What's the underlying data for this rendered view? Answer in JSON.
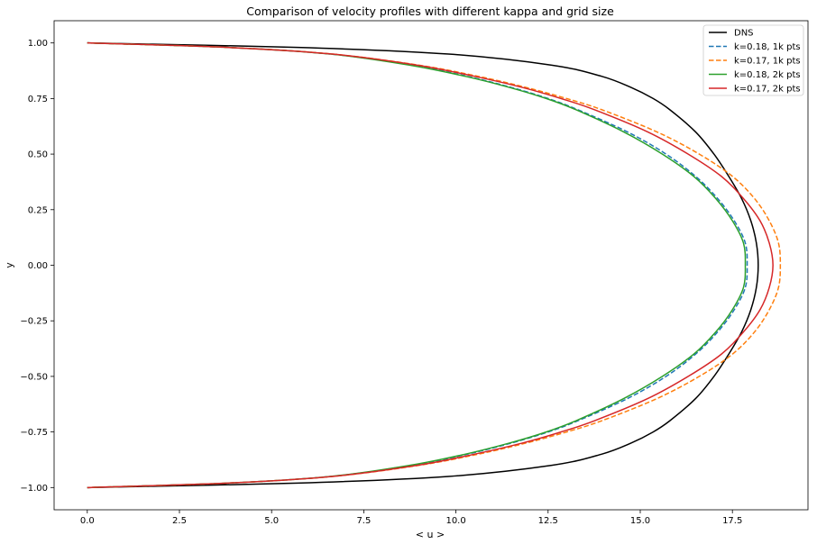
{
  "chart_data": {
    "type": "line",
    "title": "Comparison of velocity profiles with different kappa and grid size",
    "xlabel": "< u >",
    "ylabel": "y",
    "xlim": [
      -0.9,
      19.55
    ],
    "ylim": [
      -1.1,
      1.1
    ],
    "xticks": [
      0.0,
      2.5,
      5.0,
      7.5,
      10.0,
      12.5,
      15.0,
      17.5
    ],
    "xtick_labels": [
      "0.0",
      "2.5",
      "5.0",
      "7.5",
      "10.0",
      "12.5",
      "15.0",
      "17.5"
    ],
    "yticks": [
      1.0,
      0.75,
      0.5,
      0.25,
      0.0,
      -0.25,
      -0.5,
      -0.75,
      -1.0
    ],
    "ytick_labels": [
      "1.00",
      "0.75",
      "0.50",
      "0.25",
      "0.00",
      "−0.25",
      "−0.50",
      "−0.75",
      "−1.00"
    ],
    "grid": false,
    "legend_position": "top-right",
    "series": [
      {
        "name": "DNS",
        "color": "#000000",
        "dash": "solid",
        "y": [
          1.0,
          0.98,
          0.95,
          0.9,
          0.85,
          0.8,
          0.75,
          0.7,
          0.6,
          0.5,
          0.4,
          0.3,
          0.2,
          0.1,
          0.0
        ],
        "u": [
          0.0,
          5.7,
          9.8,
          12.6,
          13.95,
          14.75,
          15.35,
          15.8,
          16.5,
          17.0,
          17.4,
          17.75,
          18.0,
          18.15,
          18.2
        ]
      },
      {
        "name": "k=0.18, 1k pts",
        "color": "#1f77b4",
        "dash": "dashed",
        "y": [
          1.0,
          0.98,
          0.95,
          0.9,
          0.85,
          0.8,
          0.75,
          0.7,
          0.6,
          0.5,
          0.4,
          0.3,
          0.2,
          0.1,
          0.0
        ],
        "u": [
          0.0,
          3.8,
          6.6,
          8.8,
          10.3,
          11.5,
          12.5,
          13.3,
          14.65,
          15.7,
          16.5,
          17.1,
          17.55,
          17.85,
          17.9
        ]
      },
      {
        "name": "k=0.17, 1k pts",
        "color": "#ff7f0e",
        "dash": "dashed",
        "y": [
          1.0,
          0.98,
          0.95,
          0.9,
          0.85,
          0.8,
          0.75,
          0.7,
          0.6,
          0.5,
          0.4,
          0.3,
          0.2,
          0.1,
          0.0
        ],
        "u": [
          0.0,
          3.8,
          6.65,
          9.0,
          10.6,
          11.9,
          13.0,
          13.95,
          15.45,
          16.6,
          17.5,
          18.1,
          18.5,
          18.75,
          18.8
        ]
      },
      {
        "name": "k=0.18, 2k pts",
        "color": "#2ca02c",
        "dash": "solid",
        "y": [
          1.0,
          0.98,
          0.95,
          0.9,
          0.85,
          0.8,
          0.75,
          0.7,
          0.6,
          0.5,
          0.4,
          0.3,
          0.2,
          0.1,
          0.0
        ],
        "u": [
          0.0,
          3.8,
          6.6,
          8.75,
          10.25,
          11.45,
          12.45,
          13.25,
          14.55,
          15.6,
          16.45,
          17.05,
          17.5,
          17.8,
          17.85
        ]
      },
      {
        "name": "k=0.17, 2k pts",
        "color": "#d62728",
        "dash": "solid",
        "y": [
          1.0,
          0.98,
          0.95,
          0.9,
          0.85,
          0.8,
          0.75,
          0.7,
          0.6,
          0.5,
          0.4,
          0.3,
          0.2,
          0.1,
          0.0
        ],
        "u": [
          0.0,
          3.8,
          6.65,
          8.95,
          10.5,
          11.8,
          12.85,
          13.75,
          15.2,
          16.3,
          17.2,
          17.8,
          18.25,
          18.5,
          18.6
        ]
      }
    ]
  }
}
